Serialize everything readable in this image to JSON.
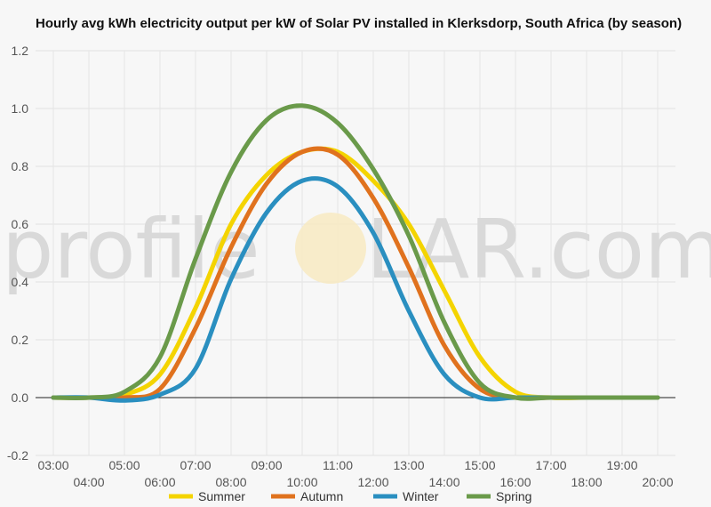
{
  "watermark": {
    "left": "profile",
    "right": "LAR.com"
  },
  "chart_data": {
    "type": "line",
    "title": "Hourly avg kWh electricity output per kW of Solar PV installed in Klerksdorp, South Africa (by season)",
    "xlabel": "",
    "ylabel": "",
    "x": [
      "03:00",
      "04:00",
      "05:00",
      "06:00",
      "07:00",
      "08:00",
      "09:00",
      "10:00",
      "11:00",
      "12:00",
      "13:00",
      "14:00",
      "15:00",
      "16:00",
      "17:00",
      "18:00",
      "19:00",
      "20:00"
    ],
    "ylim": [
      -0.2,
      1.2
    ],
    "yticks": [
      "-0.2",
      "0.0",
      "0.2",
      "0.4",
      "0.6",
      "0.8",
      "1.0",
      "1.2"
    ],
    "grid": true,
    "legend": "bottom",
    "series": [
      {
        "name": "Summer",
        "color": "#f4d400",
        "values": [
          0,
          0,
          0.01,
          0.08,
          0.31,
          0.6,
          0.77,
          0.85,
          0.85,
          0.75,
          0.6,
          0.37,
          0.14,
          0.02,
          0,
          0,
          0,
          0
        ]
      },
      {
        "name": "Autumn",
        "color": "#e0721e",
        "values": [
          0,
          0,
          0,
          0.03,
          0.24,
          0.52,
          0.74,
          0.85,
          0.84,
          0.69,
          0.45,
          0.18,
          0.03,
          0,
          0,
          0,
          0,
          0
        ]
      },
      {
        "name": "Winter",
        "color": "#2a8fc0",
        "values": [
          0,
          0,
          -0.01,
          0.01,
          0.1,
          0.41,
          0.64,
          0.75,
          0.73,
          0.57,
          0.3,
          0.08,
          0,
          0,
          0,
          0,
          0,
          0
        ]
      },
      {
        "name": "Spring",
        "color": "#6a9a4a",
        "values": [
          0,
          0,
          0.02,
          0.14,
          0.48,
          0.78,
          0.96,
          1.01,
          0.95,
          0.79,
          0.56,
          0.26,
          0.05,
          0,
          0,
          0,
          0,
          0
        ]
      }
    ]
  }
}
